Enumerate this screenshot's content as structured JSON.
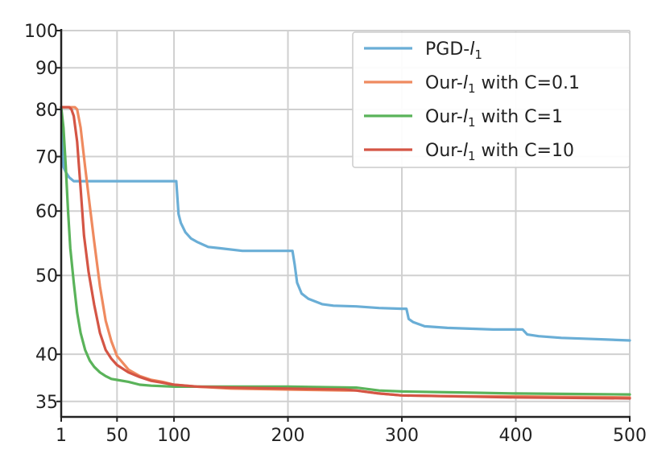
{
  "chart_data": {
    "type": "line",
    "title": "",
    "xlabel": "",
    "ylabel": "",
    "xlim": [
      1,
      500
    ],
    "ylim": [
      33.5,
      100
    ],
    "yscale": "log",
    "grid": true,
    "legend_position": "top-right",
    "x_ticks": [
      {
        "value": 1,
        "label": "1"
      },
      {
        "value": 50,
        "label": "50"
      },
      {
        "value": 100,
        "label": "100"
      },
      {
        "value": 200,
        "label": "200"
      },
      {
        "value": 300,
        "label": "300"
      },
      {
        "value": 400,
        "label": "400"
      },
      {
        "value": 500,
        "label": "500"
      }
    ],
    "y_ticks": [
      {
        "value": 35,
        "label": "35"
      },
      {
        "value": 40,
        "label": "40"
      },
      {
        "value": 50,
        "label": "50"
      },
      {
        "value": 60,
        "label": "60"
      },
      {
        "value": 70,
        "label": "70"
      },
      {
        "value": 80,
        "label": "80"
      },
      {
        "value": 90,
        "label": "90"
      },
      {
        "value": 100,
        "label": "100"
      }
    ],
    "series": [
      {
        "name": "PGD-l1",
        "color": "#6aaed6",
        "x": [
          1,
          3,
          5,
          8,
          12,
          20,
          30,
          50,
          70,
          100,
          102,
          104,
          106,
          110,
          115,
          120,
          130,
          140,
          160,
          180,
          200,
          204,
          206,
          208,
          212,
          218,
          230,
          240,
          260,
          280,
          300,
          304,
          306,
          310,
          320,
          340,
          360,
          380,
          400,
          406,
          410,
          420,
          440,
          460,
          480,
          500
        ],
        "y": [
          80.5,
          68,
          67,
          66,
          65.3,
          65.3,
          65.3,
          65.3,
          65.3,
          65.3,
          65.3,
          59.5,
          58,
          56.5,
          55.5,
          55,
          54.2,
          54,
          53.6,
          53.6,
          53.6,
          53.6,
          51.5,
          49,
          47.5,
          46.8,
          46.1,
          45.9,
          45.8,
          45.6,
          45.5,
          45.5,
          44.2,
          43.8,
          43.3,
          43.1,
          43.0,
          42.9,
          42.9,
          42.9,
          42.3,
          42.1,
          41.9,
          41.8,
          41.7,
          41.6
        ]
      },
      {
        "name": "Our-l1 with C=0.1",
        "color": "#ef8a5f",
        "x": [
          1,
          5,
          10,
          13,
          15,
          18,
          22,
          26,
          30,
          35,
          40,
          45,
          50,
          60,
          70,
          80,
          90,
          100,
          120,
          150,
          200,
          250,
          260,
          280,
          300,
          350,
          400,
          450,
          500
        ],
        "y": [
          80.5,
          80.5,
          80.5,
          80.5,
          80,
          76,
          68,
          61,
          55,
          48.5,
          44,
          41.5,
          39.8,
          38.3,
          37.6,
          37.2,
          37.0,
          36.7,
          36.5,
          36.3,
          36.2,
          36.1,
          36.1,
          35.8,
          35.6,
          35.5,
          35.5,
          35.45,
          35.4
        ]
      },
      {
        "name": "Our-l1 with C=1",
        "color": "#5ab35a",
        "x": [
          1,
          3,
          5,
          7,
          9,
          12,
          15,
          18,
          22,
          26,
          30,
          35,
          40,
          45,
          50,
          60,
          70,
          80,
          100,
          120,
          150,
          200,
          260,
          280,
          300,
          350,
          400,
          450,
          500
        ],
        "y": [
          80.5,
          76,
          68,
          60,
          54,
          49,
          45,
          42.5,
          40.5,
          39.3,
          38.6,
          38.0,
          37.6,
          37.3,
          37.2,
          37.0,
          36.7,
          36.6,
          36.5,
          36.5,
          36.5,
          36.5,
          36.4,
          36.1,
          36.0,
          35.9,
          35.8,
          35.75,
          35.7
        ]
      },
      {
        "name": "Our-l1 with C=10",
        "color": "#d45545",
        "x": [
          1,
          5,
          8,
          10,
          12,
          15,
          18,
          21,
          25,
          30,
          35,
          40,
          45,
          50,
          60,
          70,
          80,
          90,
          100,
          120,
          150,
          200,
          250,
          260,
          280,
          300,
          350,
          400,
          450,
          500
        ],
        "y": [
          80.5,
          80.5,
          80.5,
          80,
          78.5,
          73,
          64,
          56,
          50.5,
          46,
          42.5,
          40.5,
          39.5,
          38.8,
          38.0,
          37.5,
          37.1,
          36.9,
          36.7,
          36.5,
          36.4,
          36.3,
          36.2,
          36.1,
          35.8,
          35.6,
          35.5,
          35.4,
          35.35,
          35.3
        ]
      }
    ]
  }
}
